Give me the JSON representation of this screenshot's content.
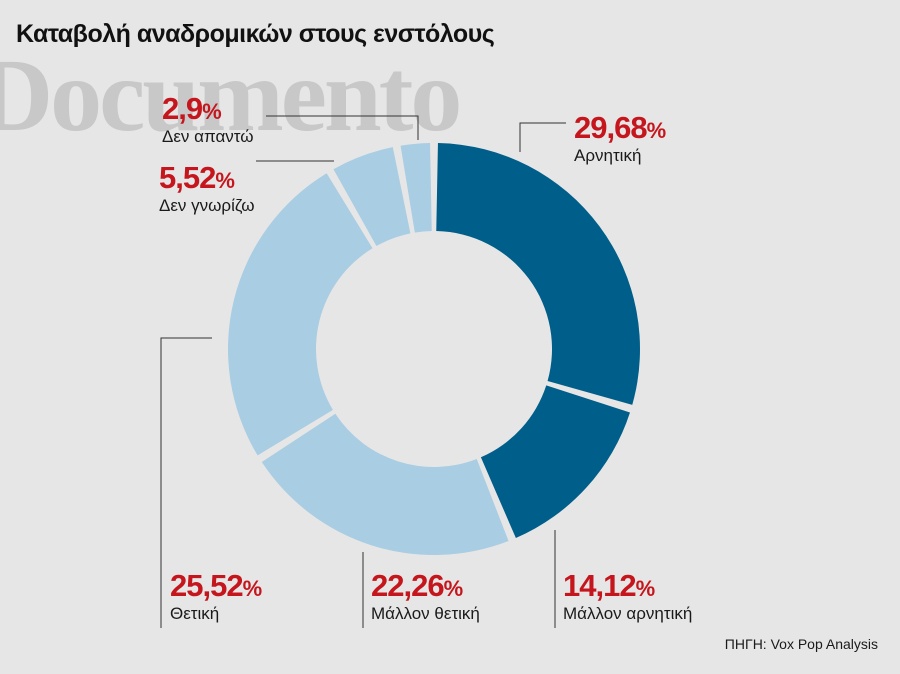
{
  "title": "Καταβολή αναδρομικών στους ενστόλους",
  "watermark": "Documento",
  "source": "ΠΗΓΗ: Vox Pop Analysis",
  "percent_sign": "%",
  "colors": {
    "dark": "#005e8a",
    "light": "#a9cde3",
    "value_red": "#c5161d",
    "leader": "#333333"
  },
  "chart_data": {
    "type": "pie",
    "donut": true,
    "title": "Καταβολή αναδρομικών στους ενστόλους",
    "slices": [
      {
        "label": "Αρνητική",
        "value": 29.68,
        "display": "29,68",
        "color": "#005e8a"
      },
      {
        "label": "Μάλλον αρνητική",
        "value": 14.12,
        "display": "14,12",
        "color": "#005e8a"
      },
      {
        "label": "Μάλλον θετική",
        "value": 22.26,
        "display": "22,26",
        "color": "#a9cde3"
      },
      {
        "label": "Θετική",
        "value": 25.52,
        "display": "25,52",
        "color": "#a9cde3"
      },
      {
        "label": "Δεν γνωρίζω",
        "value": 5.52,
        "display": "5,52",
        "color": "#a9cde3"
      },
      {
        "label": "Δεν απαντώ",
        "value": 2.9,
        "display": "2,9",
        "color": "#a9cde3"
      }
    ]
  }
}
